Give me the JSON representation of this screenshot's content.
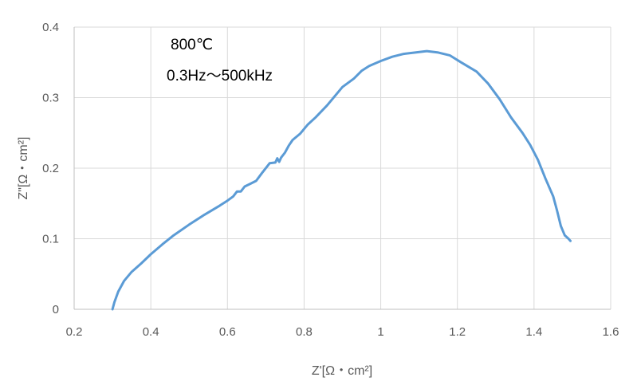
{
  "chart_data": {
    "type": "line",
    "title": "",
    "xlabel": "Z'[Ω・cm²]",
    "ylabel": "Z\"[Ω・cm²]",
    "xlim": [
      0.2,
      1.6
    ],
    "ylim": [
      0,
      0.4
    ],
    "xticks": [
      0.2,
      0.4,
      0.6,
      0.8,
      1,
      1.2,
      1.4,
      1.6
    ],
    "yticks": [
      0,
      0.1,
      0.2,
      0.3,
      0.4
    ],
    "xtick_labels": [
      "0.2",
      "0.4",
      "0.6",
      "0.8",
      "1",
      "1.2",
      "1.4",
      "1.6"
    ],
    "ytick_labels": [
      "0",
      "0.1",
      "0.2",
      "0.3",
      "0.4"
    ],
    "grid": true,
    "legend": "none",
    "annotations": [
      "800℃",
      "0.3Hz～500kHz"
    ],
    "series": [
      {
        "color": "#5b9bd5",
        "x": [
          0.3,
          0.305,
          0.315,
          0.33,
          0.35,
          0.375,
          0.4,
          0.43,
          0.46,
          0.5,
          0.54,
          0.58,
          0.6,
          0.615,
          0.625,
          0.635,
          0.645,
          0.66,
          0.675,
          0.69,
          0.71,
          0.725,
          0.73,
          0.735,
          0.74,
          0.75,
          0.76,
          0.77,
          0.79,
          0.81,
          0.83,
          0.86,
          0.88,
          0.9,
          0.93,
          0.95,
          0.97,
          1.0,
          1.03,
          1.06,
          1.09,
          1.12,
          1.15,
          1.18,
          1.21,
          1.25,
          1.28,
          1.31,
          1.34,
          1.37,
          1.39,
          1.41,
          1.43,
          1.45,
          1.46,
          1.47,
          1.48,
          1.49,
          1.495
        ],
        "y": [
          0.0,
          0.01,
          0.025,
          0.04,
          0.053,
          0.065,
          0.078,
          0.092,
          0.105,
          0.12,
          0.134,
          0.147,
          0.154,
          0.16,
          0.167,
          0.167,
          0.174,
          0.178,
          0.182,
          0.193,
          0.207,
          0.208,
          0.214,
          0.209,
          0.215,
          0.222,
          0.232,
          0.24,
          0.249,
          0.262,
          0.272,
          0.289,
          0.302,
          0.315,
          0.327,
          0.338,
          0.345,
          0.352,
          0.358,
          0.362,
          0.364,
          0.366,
          0.364,
          0.36,
          0.35,
          0.337,
          0.32,
          0.298,
          0.272,
          0.25,
          0.233,
          0.212,
          0.185,
          0.16,
          0.14,
          0.118,
          0.105,
          0.1,
          0.097
        ]
      }
    ]
  }
}
